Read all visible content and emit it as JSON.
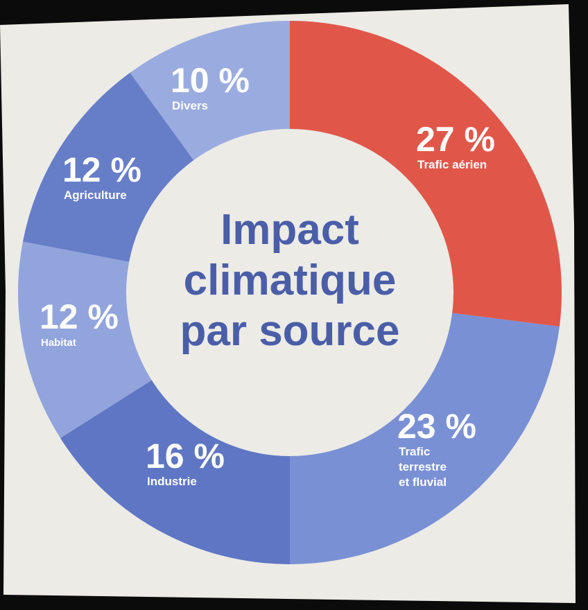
{
  "chart_data": {
    "type": "pie",
    "variant": "donut",
    "title": [
      "Impact",
      "climatique",
      "par source"
    ],
    "slices": [
      {
        "percent_label": "27 %",
        "value": 27,
        "label_lines": [
          "Trafic aérien"
        ],
        "color": "#e0574a"
      },
      {
        "percent_label": "23 %",
        "value": 23,
        "label_lines": [
          "Trafic",
          "terrestre",
          "et fluvial"
        ],
        "color": "#7a90d4"
      },
      {
        "percent_label": "16 %",
        "value": 16,
        "label_lines": [
          "Industrie"
        ],
        "color": "#5f76c4"
      },
      {
        "percent_label": "12 %",
        "value": 12,
        "label_lines": [
          "Habitat"
        ],
        "color": "#91a4dc"
      },
      {
        "percent_label": "12 %",
        "value": 12,
        "label_lines": [
          "Agriculture"
        ],
        "color": "#667ec8"
      },
      {
        "percent_label": "10 %",
        "value": 10,
        "label_lines": [
          "Divers"
        ],
        "color": "#9aabdf"
      }
    ],
    "title_color": "#4a5ea8",
    "paper_color": "#ecebe6"
  }
}
